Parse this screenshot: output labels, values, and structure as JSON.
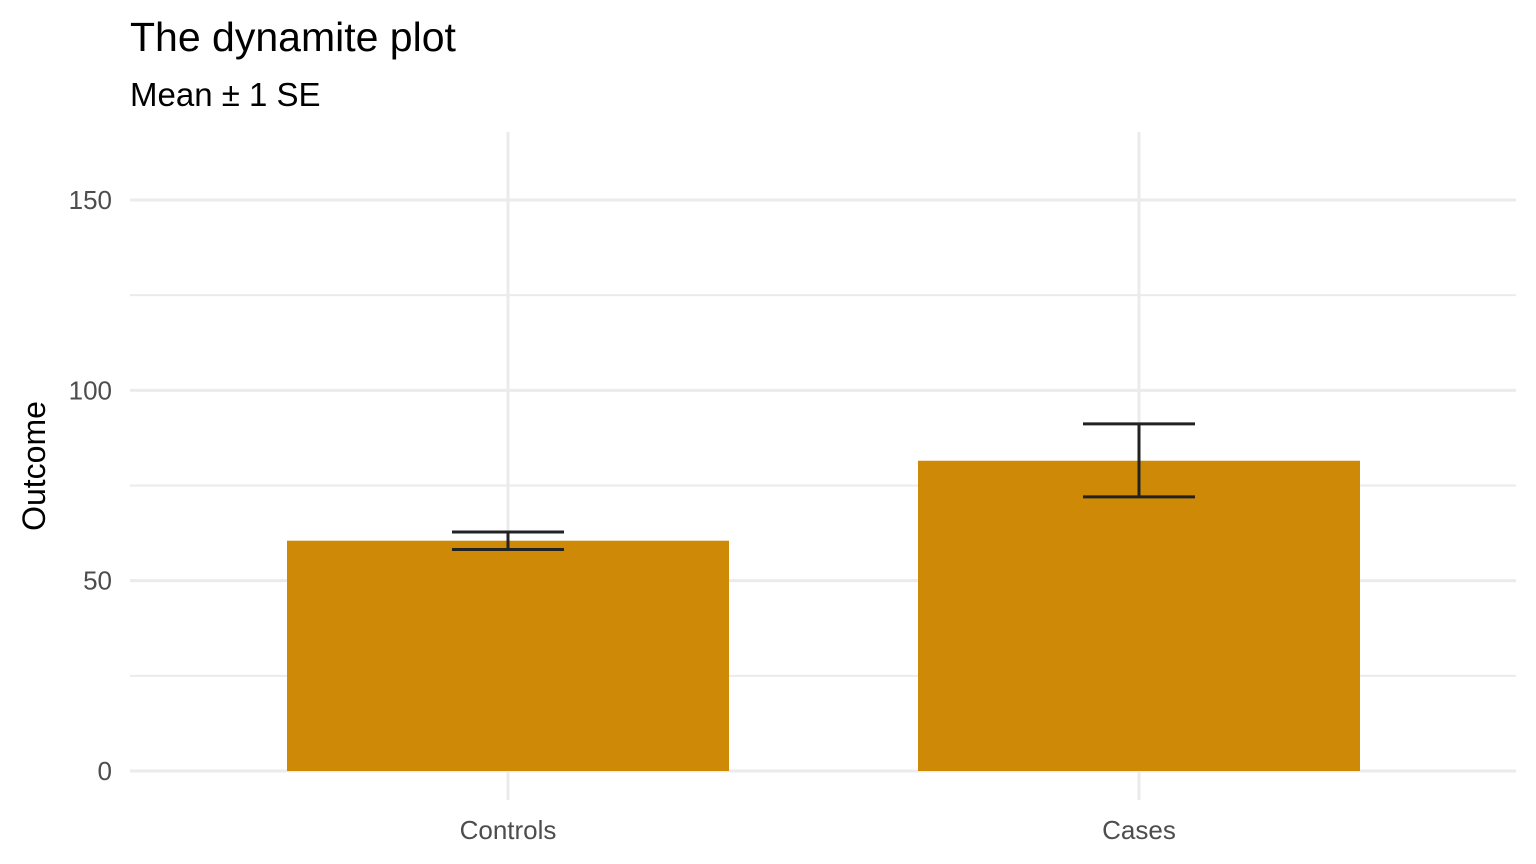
{
  "chart_data": {
    "type": "bar",
    "title": "The dynamite plot",
    "subtitle": "Mean ± 1 SE",
    "xlabel": "",
    "ylabel": "Outcome",
    "categories": [
      "Controls",
      "Cases"
    ],
    "values": [
      60.5,
      81.5
    ],
    "error_low": [
      58.2,
      72.0
    ],
    "error_high": [
      62.8,
      91.2
    ],
    "ylim": [
      0,
      168
    ],
    "y_ticks": [
      0,
      50,
      100,
      150
    ],
    "y_tick_labels": [
      "0",
      "50",
      "100",
      "150"
    ],
    "y_minor_ticks": [
      25,
      75,
      125
    ],
    "grid": true,
    "legend": "none",
    "bar_color": "#CE8906",
    "error_color": "#222222"
  }
}
